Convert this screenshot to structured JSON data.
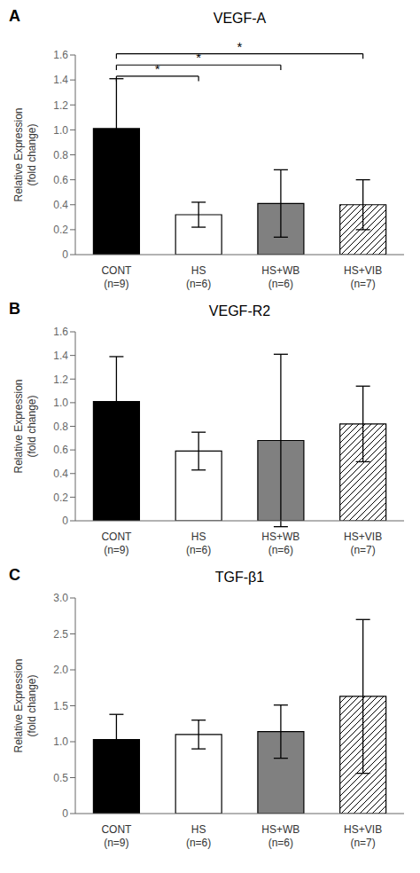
{
  "chart_data": [
    {
      "type": "bar",
      "label": "A",
      "title": "VEGF-A",
      "categories": [
        "CONT\n(n=9)",
        "HS\n(n=6)",
        "HS+WB\n(n=6)",
        "HS+VIB\n(n=7)"
      ],
      "values": [
        1.01,
        0.32,
        0.41,
        0.4
      ],
      "errors": [
        0.4,
        0.1,
        0.27,
        0.2
      ],
      "colors": [
        "#000000",
        "#ffffff",
        "#808080",
        "#ffffff"
      ],
      "ylabel": "Relative Expression\n(fold change)",
      "ylim": [
        0,
        1.6
      ],
      "yticks": [
        0,
        0.2,
        0.4,
        0.6,
        0.8,
        {
          "value": 1.0,
          "label": "1.0"
        },
        1.2,
        1.4,
        1.6
      ],
      "sig_brackets": [
        {
          "x1": 0,
          "x2": 1,
          "y": 1.43,
          "label": "*"
        },
        {
          "x1": 0,
          "x2": 2,
          "y": 1.52,
          "label": "*"
        },
        {
          "x1": 0,
          "x2": 3,
          "y": 1.61,
          "label": "*"
        }
      ]
    },
    {
      "type": "bar",
      "label": "B",
      "title": "VEGF-R2",
      "categories": [
        "CONT\n(n=9)",
        "HS\n(n=6)",
        "HS+WB\n(n=6)",
        "HS+VIB\n(n=7)"
      ],
      "values": [
        1.01,
        0.59,
        0.68,
        0.82
      ],
      "errors": [
        0.38,
        0.16,
        0.73,
        0.32
      ],
      "colors": [
        "#000000",
        "#ffffff",
        "#808080",
        "#ffffff"
      ],
      "ylabel": "Relative Expression\n(fold change)",
      "ylim": [
        0,
        1.6
      ],
      "yticks": [
        0,
        0.2,
        0.4,
        0.6,
        0.8,
        {
          "value": 1.0,
          "label": "1.0"
        },
        1.2,
        1.4,
        1.6
      ],
      "sig_brackets": []
    },
    {
      "type": "bar",
      "label": "C",
      "title": "TGF-β1",
      "categories": [
        "CONT\n(n=9)",
        "HS\n(n=6)",
        "HS+WB\n(n=6)",
        "HS+VIB\n(n=7)"
      ],
      "values": [
        1.03,
        1.1,
        1.14,
        1.63
      ],
      "errors": [
        0.35,
        0.2,
        0.37,
        1.07
      ],
      "colors": [
        "#000000",
        "#ffffff",
        "#808080",
        "#ffffff"
      ],
      "ylabel": "Relative Expression\n(fold change)",
      "ylim": [
        0,
        3.0
      ],
      "yticks": [
        0,
        0.5,
        {
          "value": 1.0,
          "label": "1.0"
        },
        1.5,
        {
          "value": 2.0,
          "label": "2.0"
        },
        2.5,
        {
          "value": 3.0,
          "label": "3.0"
        }
      ],
      "sig_brackets": []
    }
  ]
}
